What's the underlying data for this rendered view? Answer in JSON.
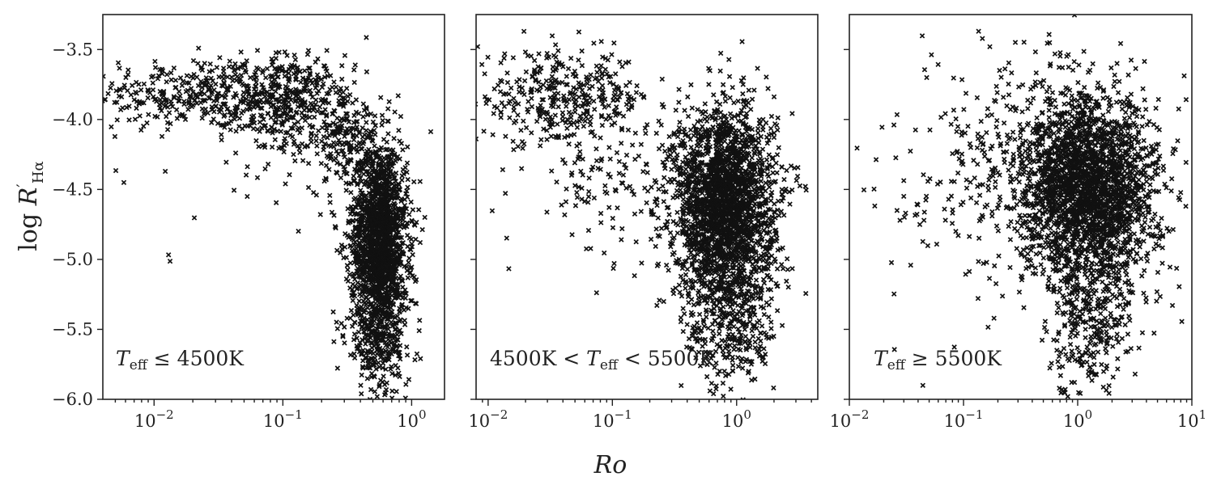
{
  "chart_data": [
    {
      "type": "scatter",
      "annotation": "T_eff ≤ 4500K",
      "annotation_parts": {
        "t": "T",
        "sub": "eff",
        "rest": " ≤ 4500K"
      },
      "xscale": "log",
      "xlim": [
        0.004,
        1.8
      ],
      "ylim": [
        -6.0,
        -3.25
      ],
      "ylabel": "log R′_Hα",
      "xticks": [
        0.01,
        0.1,
        1
      ],
      "xtick_labels": [
        {
          "base": "10",
          "exp": "−2"
        },
        {
          "base": "10",
          "exp": "−1"
        },
        {
          "base": "10",
          "exp": "0"
        }
      ],
      "yticks": [
        -3.5,
        -4.0,
        -4.5,
        -5.0,
        -5.5,
        -6.0
      ],
      "ytick_labels": [
        "−3.5",
        "−4.0",
        "−4.5",
        "−5.0",
        "−5.5",
        "−6.0"
      ],
      "marker": "x",
      "grid": false,
      "clusters": [
        {
          "n": 420,
          "log_ro": -1.6,
          "sd_ro": 0.45,
          "y": -3.82,
          "sd_y": 0.13
        },
        {
          "n": 320,
          "log_ro": -0.95,
          "sd_ro": 0.2,
          "y": -3.9,
          "sd_y": 0.18
        },
        {
          "n": 180,
          "log_ro": -0.55,
          "sd_ro": 0.12,
          "y": -4.1,
          "sd_y": 0.2
        },
        {
          "n": 1700,
          "log_ro": -0.25,
          "sd_ro": 0.11,
          "y": -4.85,
          "sd_y": 0.35
        },
        {
          "n": 260,
          "log_ro": -0.25,
          "sd_ro": 0.13,
          "y": -5.55,
          "sd_y": 0.22
        },
        {
          "n": 25,
          "log_ro": -1.2,
          "sd_ro": 0.6,
          "y": -4.6,
          "sd_y": 0.4
        }
      ]
    },
    {
      "type": "scatter",
      "annotation": "4500K < T_eff < 5500K",
      "annotation_parts": {
        "pre": "4500K < ",
        "t": "T",
        "sub": "eff",
        "rest": " < 5500K"
      },
      "xscale": "log",
      "xlim": [
        0.008,
        4.5
      ],
      "ylim": [
        -6.0,
        -3.25
      ],
      "xticks": [
        0.01,
        0.1,
        1
      ],
      "xtick_labels": [
        {
          "base": "10",
          "exp": "−2"
        },
        {
          "base": "10",
          "exp": "−1"
        },
        {
          "base": "10",
          "exp": "0"
        }
      ],
      "yticks": [
        -3.5,
        -4.0,
        -4.5,
        -5.0,
        -5.5,
        -6.0
      ],
      "marker": "x",
      "grid": false,
      "clusters": [
        {
          "n": 380,
          "log_ro": -1.4,
          "sd_ro": 0.35,
          "y": -3.85,
          "sd_y": 0.16
        },
        {
          "n": 140,
          "log_ro": -1.0,
          "sd_ro": 0.35,
          "y": -4.45,
          "sd_y": 0.25
        },
        {
          "n": 2300,
          "log_ro": -0.1,
          "sd_ro": 0.2,
          "y": -4.6,
          "sd_y": 0.35
        },
        {
          "n": 320,
          "log_ro": -0.05,
          "sd_ro": 0.18,
          "y": -5.45,
          "sd_y": 0.25
        },
        {
          "n": 40,
          "log_ro": 0.25,
          "sd_ro": 0.2,
          "y": -4.9,
          "sd_y": 0.4
        }
      ]
    },
    {
      "type": "scatter",
      "annotation": "T_eff ≥ 5500K",
      "annotation_parts": {
        "t": "T",
        "sub": "eff",
        "rest": " ≥ 5500K"
      },
      "xscale": "log",
      "xlim": [
        0.01,
        10
      ],
      "ylim": [
        -6.0,
        -3.25
      ],
      "xticks": [
        0.01,
        0.1,
        1,
        10
      ],
      "xtick_labels": [
        {
          "base": "10",
          "exp": "−2"
        },
        {
          "base": "10",
          "exp": "−1"
        },
        {
          "base": "10",
          "exp": "0"
        },
        {
          "base": "10",
          "exp": "1"
        }
      ],
      "yticks": [
        -3.5,
        -4.0,
        -4.5,
        -5.0,
        -5.5,
        -6.0
      ],
      "marker": "x",
      "grid": false,
      "clusters": [
        {
          "n": 2500,
          "log_ro": 0.1,
          "sd_ro": 0.3,
          "y": -4.5,
          "sd_y": 0.33
        },
        {
          "n": 320,
          "log_ro": 0.1,
          "sd_ro": 0.18,
          "y": -5.4,
          "sd_y": 0.28
        },
        {
          "n": 220,
          "log_ro": -0.6,
          "sd_ro": 0.45,
          "y": -4.3,
          "sd_y": 0.4
        },
        {
          "n": 60,
          "log_ro": -1.2,
          "sd_ro": 0.4,
          "y": -4.5,
          "sd_y": 0.5
        }
      ]
    }
  ],
  "xlabel": "Ro",
  "ylabel": {
    "pre": "log ",
    "r": "R",
    "prime": "′",
    "sub": "Hα"
  }
}
